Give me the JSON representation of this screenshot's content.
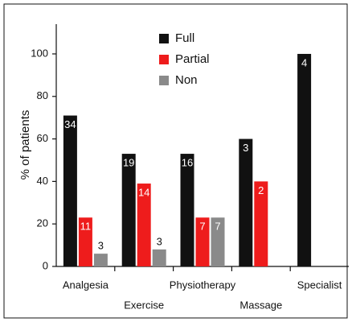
{
  "chart_data": {
    "type": "bar",
    "categories": [
      "Analgesia",
      "Exercise",
      "Physiotherapy",
      "Massage",
      "Specialist"
    ],
    "y_label": "% of patients",
    "series": [
      {
        "name": "Full",
        "color": "#111111",
        "values": [
          71,
          53,
          53,
          60,
          100
        ],
        "counts": [
          34,
          19,
          16,
          3,
          4
        ]
      },
      {
        "name": "Partial",
        "color": "#ee1c1c",
        "values": [
          23,
          39,
          23,
          40,
          null
        ],
        "counts": [
          11,
          14,
          7,
          2,
          null
        ]
      },
      {
        "name": "Non",
        "color": "#8a8a8a",
        "values": [
          6,
          8,
          23,
          null,
          null
        ],
        "counts": [
          3,
          3,
          7,
          null,
          null
        ]
      }
    ],
    "ylim": [
      0,
      114
    ],
    "yticks": [
      0,
      20,
      40,
      60,
      80,
      100
    ],
    "legend": "top"
  }
}
